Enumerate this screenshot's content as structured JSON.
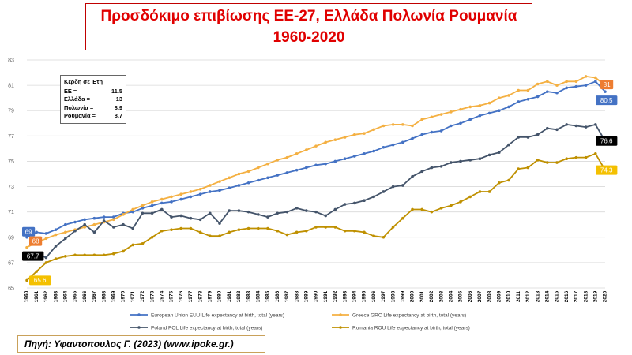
{
  "title_line1": "Προσδόκιμο επιβίωσης ΕΕ-27, Ελλάδα Πολωνία Ρουμανία",
  "title_line2": "1960-2020",
  "gains": {
    "header": "Κέρδη  σε Έτη",
    "rows": [
      {
        "label": "ΕΕ =",
        "value": "11.5"
      },
      {
        "label": "Ελλάδα =",
        "value": "13"
      },
      {
        "label": "Πολωνία =",
        "value": "8.9"
      },
      {
        "label": "Ρουμανία =",
        "value": "8.7"
      }
    ]
  },
  "source": "Πηγή: Υφαντοπουλος Γ. (2023)  (www.ipoke.gr.)",
  "chart_data": {
    "type": "line",
    "xlabel": "",
    "ylabel": "",
    "ylim": [
      65,
      83
    ],
    "yticks": [
      65,
      67,
      69,
      71,
      73,
      75,
      77,
      79,
      81,
      83
    ],
    "grid": true,
    "legend_position": "bottom",
    "x": [
      1960,
      1961,
      1962,
      1963,
      1964,
      1965,
      1966,
      1967,
      1968,
      1969,
      1970,
      1971,
      1972,
      1973,
      1974,
      1975,
      1976,
      1977,
      1978,
      1979,
      1980,
      1981,
      1982,
      1983,
      1984,
      1985,
      1986,
      1987,
      1988,
      1989,
      1990,
      1991,
      1992,
      1993,
      1994,
      1995,
      1996,
      1997,
      1998,
      1999,
      2000,
      2001,
      2002,
      2003,
      2004,
      2005,
      2006,
      2007,
      2008,
      2009,
      2010,
      2011,
      2012,
      2013,
      2014,
      2015,
      2016,
      2017,
      2018,
      2019,
      2020
    ],
    "series": [
      {
        "name": "European Union EUU Life expectancy at birth, total (years)",
        "color": "#4472c4",
        "values": [
          69.0,
          69.4,
          69.3,
          69.6,
          70.0,
          70.2,
          70.4,
          70.5,
          70.6,
          70.6,
          70.9,
          71.0,
          71.3,
          71.5,
          71.7,
          71.8,
          72.0,
          72.2,
          72.4,
          72.6,
          72.7,
          72.9,
          73.1,
          73.3,
          73.5,
          73.7,
          73.9,
          74.1,
          74.3,
          74.5,
          74.7,
          74.8,
          75.0,
          75.2,
          75.4,
          75.6,
          75.8,
          76.1,
          76.3,
          76.5,
          76.8,
          77.1,
          77.3,
          77.4,
          77.8,
          78.0,
          78.3,
          78.6,
          78.8,
          79.0,
          79.3,
          79.7,
          79.9,
          80.1,
          80.5,
          80.4,
          80.8,
          80.9,
          81.0,
          81.3,
          80.5
        ],
        "end_label": "80.5",
        "start_label": "69"
      },
      {
        "name": "Greece GRC Life expectancy at birth, total (years)",
        "color": "#f4b042",
        "values": [
          68.2,
          68.6,
          68.9,
          69.2,
          69.4,
          69.6,
          69.8,
          70.0,
          70.2,
          70.4,
          70.8,
          71.2,
          71.5,
          71.8,
          72.0,
          72.2,
          72.4,
          72.6,
          72.8,
          73.1,
          73.4,
          73.7,
          74.0,
          74.2,
          74.5,
          74.8,
          75.1,
          75.3,
          75.6,
          75.9,
          76.2,
          76.5,
          76.7,
          76.9,
          77.1,
          77.2,
          77.5,
          77.8,
          77.9,
          77.9,
          77.8,
          78.3,
          78.5,
          78.7,
          78.9,
          79.1,
          79.3,
          79.4,
          79.6,
          80.0,
          80.2,
          80.6,
          80.6,
          81.1,
          81.3,
          81.0,
          81.3,
          81.3,
          81.7,
          81.6,
          81.0
        ],
        "end_label": "81",
        "start_label": "68"
      },
      {
        "name": "Poland POL Life expectancy at birth, total (years)",
        "color": "#44546a",
        "values": [
          67.7,
          67.7,
          67.4,
          68.3,
          68.9,
          69.5,
          70.0,
          69.4,
          70.3,
          69.8,
          70.0,
          69.7,
          70.9,
          70.9,
          71.2,
          70.6,
          70.7,
          70.5,
          70.4,
          70.9,
          70.1,
          71.1,
          71.1,
          71.0,
          70.8,
          70.6,
          70.9,
          71.0,
          71.3,
          71.1,
          71.0,
          70.7,
          71.2,
          71.6,
          71.7,
          71.9,
          72.2,
          72.6,
          73.0,
          73.1,
          73.8,
          74.2,
          74.5,
          74.6,
          74.9,
          75.0,
          75.1,
          75.2,
          75.5,
          75.7,
          76.3,
          76.9,
          76.9,
          77.1,
          77.6,
          77.5,
          77.9,
          77.8,
          77.7,
          77.9,
          76.6
        ],
        "end_label": "76.6",
        "start_label": "67.7"
      },
      {
        "name": "Romania ROU Life expectancy at birth, total (years)",
        "color": "#bf9000",
        "values": [
          65.6,
          66.3,
          67.0,
          67.3,
          67.5,
          67.6,
          67.6,
          67.6,
          67.6,
          67.7,
          67.9,
          68.4,
          68.5,
          69.0,
          69.5,
          69.6,
          69.7,
          69.7,
          69.4,
          69.1,
          69.1,
          69.4,
          69.6,
          69.7,
          69.7,
          69.7,
          69.5,
          69.2,
          69.4,
          69.5,
          69.8,
          69.8,
          69.8,
          69.5,
          69.5,
          69.4,
          69.1,
          69.0,
          69.8,
          70.5,
          71.2,
          71.2,
          71.0,
          71.3,
          71.5,
          71.8,
          72.2,
          72.6,
          72.6,
          73.3,
          73.5,
          74.4,
          74.5,
          75.1,
          74.9,
          74.9,
          75.2,
          75.3,
          75.3,
          75.6,
          74.3
        ],
        "end_label": "74.3",
        "start_label": "65.6"
      }
    ]
  }
}
